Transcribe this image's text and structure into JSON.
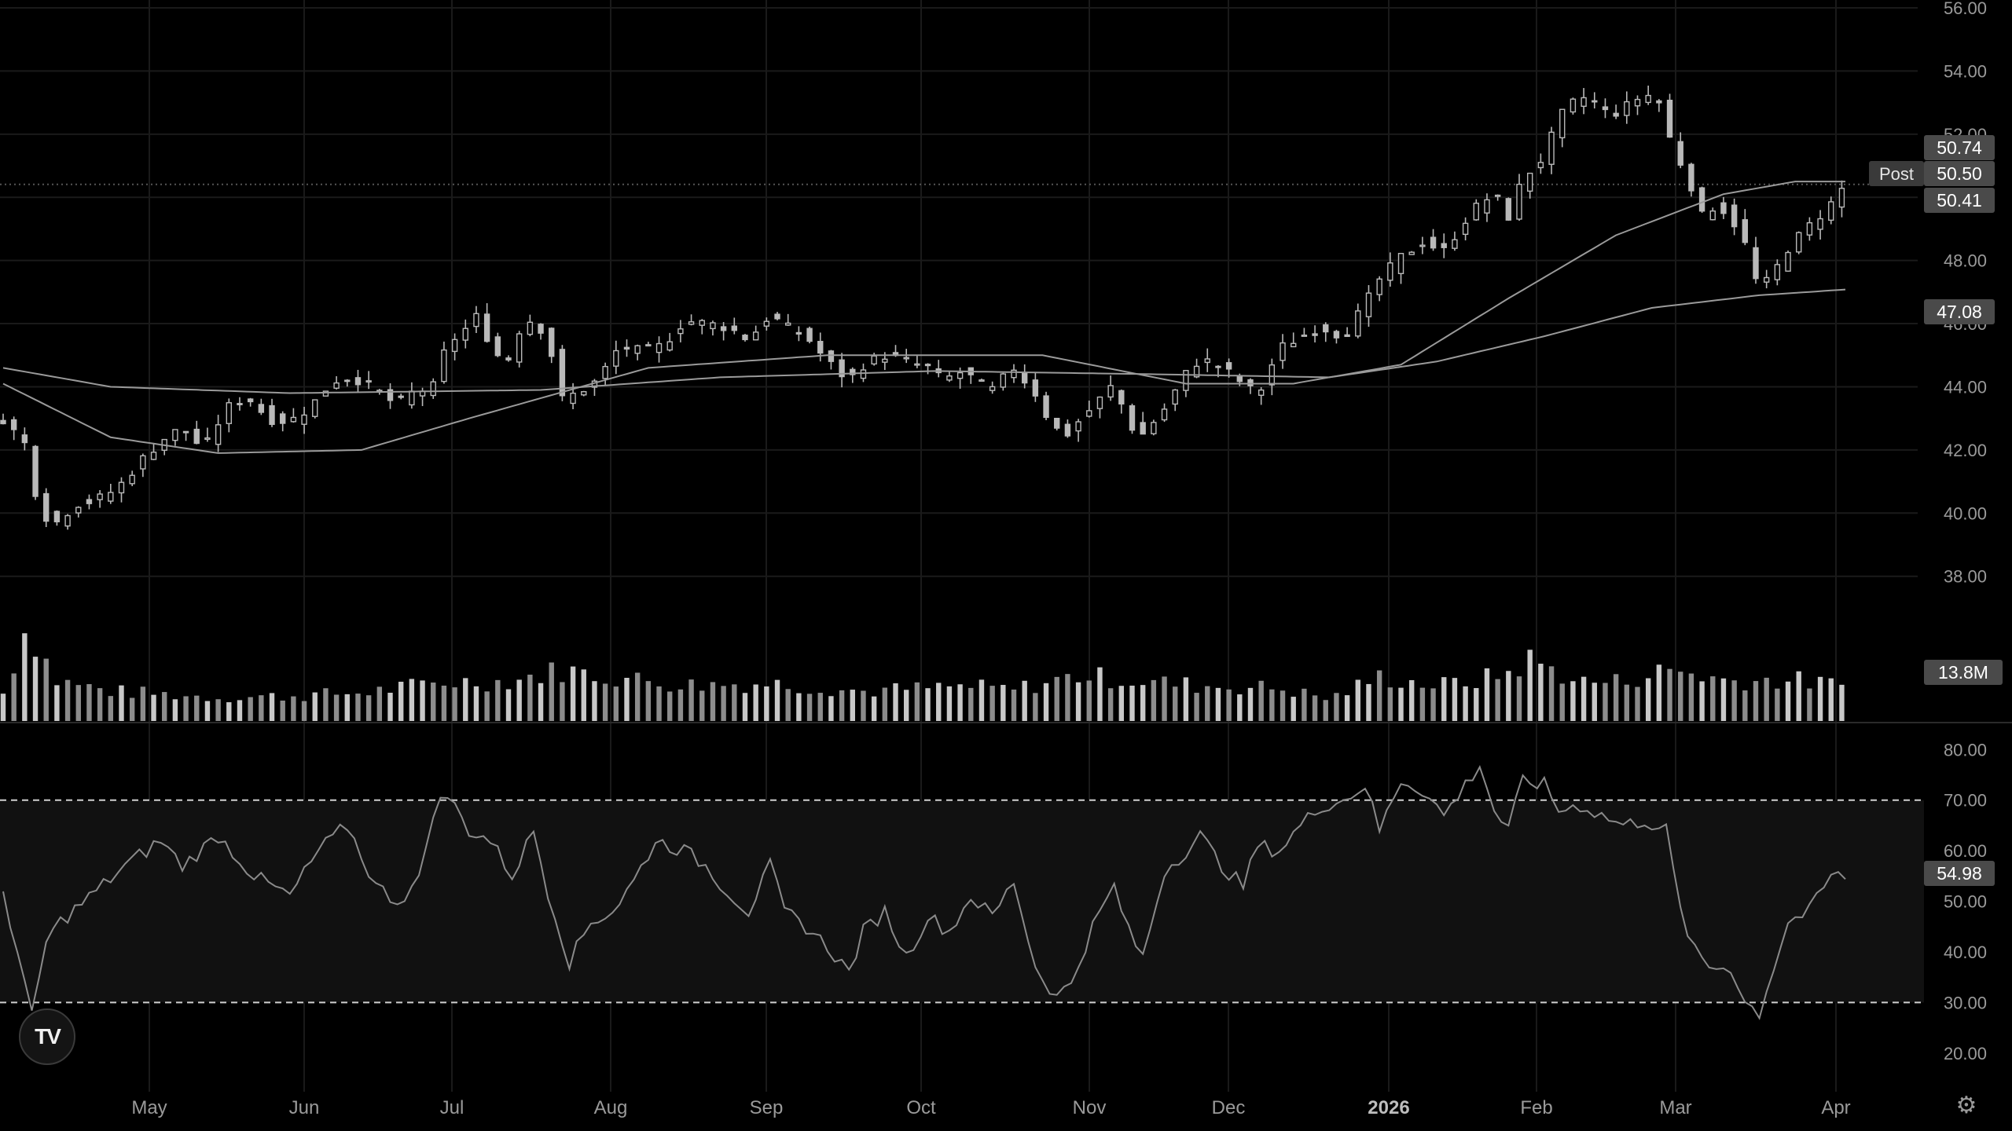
{
  "chart_data": {
    "type": "candlestick",
    "price_axis": {
      "ylim": [
        36.6,
        56.0
      ],
      "ticks": [
        "56.00",
        "54.00",
        "52.00",
        "50.00",
        "48.00",
        "46.00",
        "44.00",
        "42.00",
        "40.00",
        "38.00"
      ]
    },
    "x_axis": {
      "labels": [
        {
          "text": "May"
        },
        {
          "text": "Jun"
        },
        {
          "text": "Jul"
        },
        {
          "text": "Aug"
        },
        {
          "text": "Sep"
        },
        {
          "text": "Oct"
        },
        {
          "text": "Nov"
        },
        {
          "text": "Dec"
        },
        {
          "text": "2026",
          "bold": true
        },
        {
          "text": "Feb"
        },
        {
          "text": "Mar"
        },
        {
          "text": "Apr"
        }
      ]
    },
    "price_keypoints": [
      [
        0,
        43.0
      ],
      [
        6,
        42.2
      ],
      [
        10,
        40.2
      ],
      [
        14,
        39.6
      ],
      [
        20,
        40.3
      ],
      [
        26,
        40.4
      ],
      [
        32,
        40.8
      ],
      [
        38,
        41.6
      ],
      [
        44,
        42.3
      ],
      [
        50,
        42.7
      ],
      [
        56,
        42.0
      ],
      [
        62,
        43.3
      ],
      [
        68,
        43.7
      ],
      [
        74,
        43.0
      ],
      [
        80,
        42.9
      ],
      [
        86,
        43.4
      ],
      [
        92,
        44.2
      ],
      [
        98,
        44.3
      ],
      [
        104,
        43.9
      ],
      [
        110,
        43.4
      ],
      [
        114,
        43.8
      ],
      [
        120,
        44.0
      ],
      [
        124,
        45.4
      ],
      [
        128,
        45.7
      ],
      [
        132,
        46.2
      ],
      [
        136,
        45.4
      ],
      [
        140,
        44.6
      ],
      [
        144,
        45.8
      ],
      [
        148,
        46.2
      ],
      [
        152,
        45.5
      ],
      [
        156,
        43.6
      ],
      [
        160,
        43.8
      ],
      [
        166,
        44.2
      ],
      [
        172,
        45.3
      ],
      [
        178,
        45.1
      ],
      [
        184,
        45.3
      ],
      [
        190,
        46.1
      ],
      [
        196,
        46.0
      ],
      [
        202,
        45.9
      ],
      [
        208,
        45.5
      ],
      [
        214,
        46.3
      ],
      [
        218,
        45.9
      ],
      [
        224,
        45.6
      ],
      [
        230,
        44.8
      ],
      [
        236,
        44.2
      ],
      [
        240,
        44.7
      ],
      [
        246,
        45.0
      ],
      [
        252,
        44.8
      ],
      [
        258,
        44.6
      ],
      [
        262,
        44.2
      ],
      [
        268,
        44.5
      ],
      [
        272,
        44.1
      ],
      [
        276,
        43.9
      ],
      [
        282,
        44.6
      ],
      [
        288,
        43.8
      ],
      [
        292,
        42.9
      ],
      [
        296,
        42.4
      ],
      [
        300,
        42.9
      ],
      [
        306,
        43.6
      ],
      [
        310,
        44.1
      ],
      [
        314,
        42.8
      ],
      [
        318,
        42.5
      ],
      [
        324,
        43.3
      ],
      [
        330,
        44.4
      ],
      [
        334,
        44.9
      ],
      [
        340,
        44.6
      ],
      [
        346,
        44.1
      ],
      [
        350,
        43.7
      ],
      [
        356,
        45.2
      ],
      [
        362,
        45.6
      ],
      [
        368,
        45.9
      ],
      [
        374,
        45.6
      ],
      [
        380,
        46.6
      ],
      [
        384,
        47.4
      ],
      [
        390,
        48.1
      ],
      [
        396,
        48.6
      ],
      [
        402,
        48.3
      ],
      [
        408,
        49.3
      ],
      [
        412,
        49.8
      ],
      [
        416,
        50.1
      ],
      [
        420,
        49.4
      ],
      [
        424,
        50.6
      ],
      [
        430,
        51.3
      ],
      [
        434,
        52.5
      ],
      [
        440,
        53.2
      ],
      [
        444,
        53.0
      ],
      [
        448,
        52.6
      ],
      [
        452,
        52.8
      ],
      [
        458,
        53.3
      ],
      [
        462,
        53.0
      ],
      [
        466,
        51.5
      ],
      [
        470,
        50.7
      ],
      [
        474,
        49.4
      ],
      [
        478,
        49.8
      ],
      [
        482,
        49.4
      ],
      [
        486,
        48.5
      ],
      [
        490,
        47.0
      ],
      [
        494,
        47.6
      ],
      [
        498,
        48.4
      ],
      [
        504,
        49.1
      ],
      [
        510,
        49.8
      ],
      [
        514,
        50.41
      ]
    ],
    "sma_short_keypoints": [
      [
        0,
        44.1
      ],
      [
        30,
        42.4
      ],
      [
        60,
        41.9
      ],
      [
        100,
        42.0
      ],
      [
        130,
        43.0
      ],
      [
        180,
        44.6
      ],
      [
        230,
        45.0
      ],
      [
        290,
        45.0
      ],
      [
        330,
        44.1
      ],
      [
        360,
        44.1
      ],
      [
        390,
        44.7
      ],
      [
        420,
        46.8
      ],
      [
        450,
        48.8
      ],
      [
        480,
        50.1
      ],
      [
        500,
        50.5
      ],
      [
        514,
        50.5
      ]
    ],
    "sma_long_keypoints": [
      [
        0,
        44.6
      ],
      [
        30,
        44.0
      ],
      [
        80,
        43.8
      ],
      [
        150,
        43.9
      ],
      [
        200,
        44.3
      ],
      [
        260,
        44.5
      ],
      [
        320,
        44.4
      ],
      [
        370,
        44.3
      ],
      [
        400,
        44.8
      ],
      [
        430,
        45.6
      ],
      [
        460,
        46.5
      ],
      [
        490,
        46.9
      ],
      [
        514,
        47.08
      ]
    ],
    "volume_keypoints": [
      [
        0,
        35
      ],
      [
        6,
        115
      ],
      [
        10,
        100
      ],
      [
        14,
        52
      ],
      [
        30,
        38
      ],
      [
        60,
        30
      ],
      [
        80,
        32
      ],
      [
        100,
        36
      ],
      [
        124,
        50
      ],
      [
        140,
        50
      ],
      [
        156,
        65
      ],
      [
        166,
        58
      ],
      [
        190,
        46
      ],
      [
        214,
        48
      ],
      [
        240,
        38
      ],
      [
        268,
        44
      ],
      [
        282,
        40
      ],
      [
        300,
        58
      ],
      [
        320,
        50
      ],
      [
        334,
        45
      ],
      [
        356,
        42
      ],
      [
        370,
        28
      ],
      [
        384,
        56
      ],
      [
        400,
        45
      ],
      [
        412,
        52
      ],
      [
        420,
        62
      ],
      [
        426,
        78
      ],
      [
        434,
        62
      ],
      [
        440,
        50
      ],
      [
        450,
        50
      ],
      [
        466,
        66
      ],
      [
        480,
        52
      ],
      [
        500,
        52
      ],
      [
        514,
        44
      ]
    ],
    "rsi_keypoints": [
      [
        0,
        52
      ],
      [
        4,
        40
      ],
      [
        8,
        27
      ],
      [
        12,
        42
      ],
      [
        16,
        46
      ],
      [
        26,
        52
      ],
      [
        34,
        57
      ],
      [
        44,
        62
      ],
      [
        50,
        57
      ],
      [
        60,
        63
      ],
      [
        70,
        55
      ],
      [
        80,
        51
      ],
      [
        88,
        60
      ],
      [
        96,
        65
      ],
      [
        104,
        53
      ],
      [
        110,
        50
      ],
      [
        116,
        54
      ],
      [
        120,
        68
      ],
      [
        124,
        71
      ],
      [
        130,
        64
      ],
      [
        136,
        62
      ],
      [
        142,
        55
      ],
      [
        148,
        64
      ],
      [
        152,
        52
      ],
      [
        158,
        38
      ],
      [
        164,
        46
      ],
      [
        170,
        48
      ],
      [
        176,
        54
      ],
      [
        182,
        62
      ],
      [
        190,
        60
      ],
      [
        196,
        57
      ],
      [
        202,
        52
      ],
      [
        208,
        48
      ],
      [
        214,
        57
      ],
      [
        218,
        48
      ],
      [
        224,
        45
      ],
      [
        230,
        41
      ],
      [
        236,
        36
      ],
      [
        240,
        44
      ],
      [
        246,
        48
      ],
      [
        252,
        39
      ],
      [
        258,
        47
      ],
      [
        264,
        44
      ],
      [
        270,
        51
      ],
      [
        276,
        47
      ],
      [
        282,
        54
      ],
      [
        288,
        37
      ],
      [
        294,
        31
      ],
      [
        298,
        34
      ],
      [
        304,
        45
      ],
      [
        310,
        53
      ],
      [
        314,
        44
      ],
      [
        318,
        39
      ],
      [
        324,
        56
      ],
      [
        330,
        60
      ],
      [
        334,
        63
      ],
      [
        340,
        57
      ],
      [
        346,
        53
      ],
      [
        350,
        61
      ],
      [
        356,
        60
      ],
      [
        362,
        65
      ],
      [
        368,
        69
      ],
      [
        374,
        70
      ],
      [
        380,
        73
      ],
      [
        384,
        64
      ],
      [
        390,
        74
      ],
      [
        396,
        72
      ],
      [
        402,
        67
      ],
      [
        408,
        73
      ],
      [
        412,
        77
      ],
      [
        416,
        68
      ],
      [
        420,
        64
      ],
      [
        424,
        74
      ],
      [
        430,
        73
      ],
      [
        434,
        68
      ],
      [
        440,
        69
      ],
      [
        446,
        67
      ],
      [
        452,
        65
      ],
      [
        458,
        66
      ],
      [
        464,
        64
      ],
      [
        468,
        48
      ],
      [
        472,
        40
      ],
      [
        476,
        37
      ],
      [
        482,
        37
      ],
      [
        486,
        30
      ],
      [
        490,
        28
      ],
      [
        494,
        37
      ],
      [
        498,
        46
      ],
      [
        504,
        48
      ],
      [
        510,
        55
      ],
      [
        514,
        54.98
      ]
    ],
    "rsi_axis": {
      "ylim": [
        15,
        83
      ],
      "ticks": [
        "80.00",
        "70.00",
        "60.00",
        "50.00",
        "40.00",
        "30.00",
        "20.00"
      ],
      "upper_band": 70,
      "lower_band": 30
    },
    "bar_count": 515,
    "colors": {
      "background": "#000000",
      "candle": "#b9b9b9",
      "line": "#9a9a9a",
      "badge": "#4a4a4a"
    }
  },
  "badges": {
    "price_high": "50.74",
    "post_label": "Post",
    "post_price": "50.50",
    "last_price": "50.41",
    "sma_long": "47.08",
    "volume": "13.8M",
    "rsi": "54.98"
  },
  "logo": {
    "text": "TV"
  },
  "icons": {
    "settings": "gear-icon"
  }
}
